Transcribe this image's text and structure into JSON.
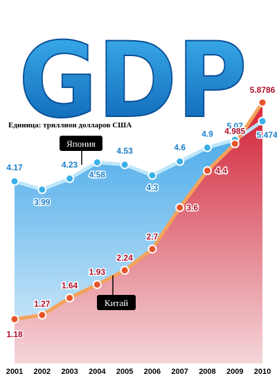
{
  "chart_data": {
    "type": "line",
    "title": "GDP",
    "unit": "Единица: триллион долларов США",
    "x": [
      "2001",
      "2002",
      "2003",
      "2004",
      "2005",
      "2006",
      "2007",
      "2008",
      "2009",
      "2010"
    ],
    "series": [
      {
        "name": "Япония",
        "values": [
          4.17,
          3.99,
          4.23,
          4.58,
          4.53,
          4.3,
          4.6,
          4.9,
          5.07,
          5.4742
        ],
        "labels": [
          "4.17",
          "3.99",
          "4.23",
          "4.58",
          "4.53",
          "4.3",
          "4.6",
          "4.9",
          "5.07",
          "5.4742"
        ],
        "color": "#3ab0e8"
      },
      {
        "name": "Китай",
        "values": [
          1.18,
          1.27,
          1.64,
          1.93,
          2.24,
          2.7,
          3.6,
          4.4,
          4.985,
          5.8786
        ],
        "labels": [
          "1.18",
          "1.27",
          "1.64",
          "1.93",
          "2.24",
          "2.7",
          "3.6",
          "4.4",
          "4.985",
          "5.8786"
        ],
        "color": "#e8542a"
      }
    ],
    "grid": false
  }
}
